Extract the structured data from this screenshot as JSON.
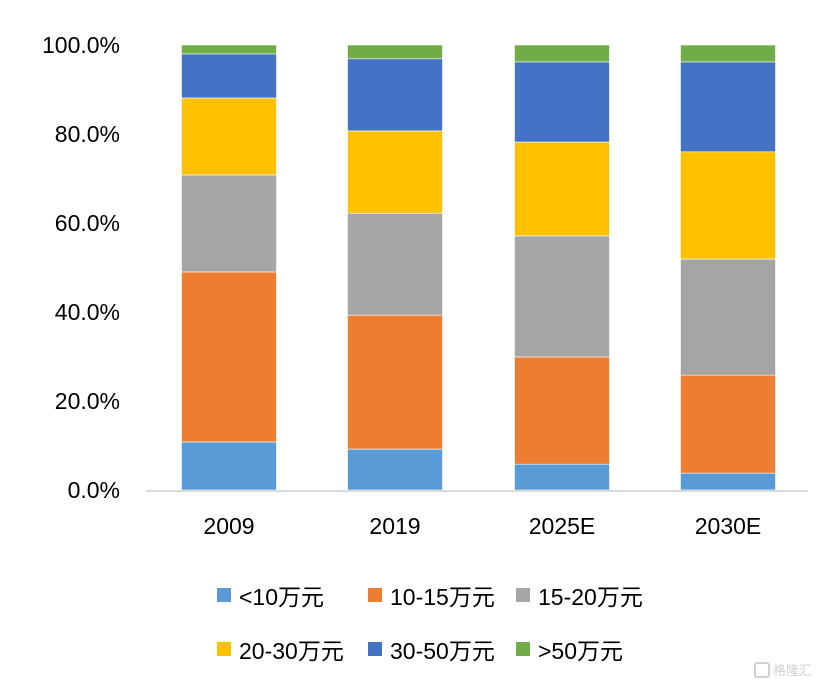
{
  "chart_data": {
    "type": "bar",
    "stacked": true,
    "percent_stacked": true,
    "title": "",
    "xlabel": "",
    "ylabel": "",
    "categories": [
      "2009",
      "2019",
      "2025E",
      "2030E"
    ],
    "ylim": [
      0,
      100
    ],
    "yticks": [
      0,
      20,
      40,
      60,
      80,
      100
    ],
    "ytick_labels": [
      "0.0%",
      "20.0%",
      "40.0%",
      "60.0%",
      "80.0%",
      "100.0%"
    ],
    "grid": false,
    "legend_position": "bottom",
    "series": [
      {
        "name": "<10万元",
        "color": "#5B9BD5",
        "values": [
          10.8,
          9.2,
          5.8,
          3.8
        ]
      },
      {
        "name": "10-15万元",
        "color": "#ED7D31",
        "values": [
          38.2,
          30.1,
          24.1,
          22.0
        ]
      },
      {
        "name": "15-20万元",
        "color": "#A5A5A5",
        "values": [
          21.8,
          22.9,
          27.2,
          26.1
        ]
      },
      {
        "name": "20-30万元",
        "color": "#FFC000",
        "values": [
          17.3,
          18.5,
          21.1,
          24.1
        ]
      },
      {
        "name": "30-50万元",
        "color": "#4472C4",
        "values": [
          9.9,
          16.2,
          18.0,
          20.2
        ]
      },
      {
        "name": ">50万元",
        "color": "#70AD47",
        "values": [
          2.0,
          3.1,
          3.8,
          3.8
        ]
      }
    ]
  },
  "watermark": {
    "text": "格隆汇"
  }
}
